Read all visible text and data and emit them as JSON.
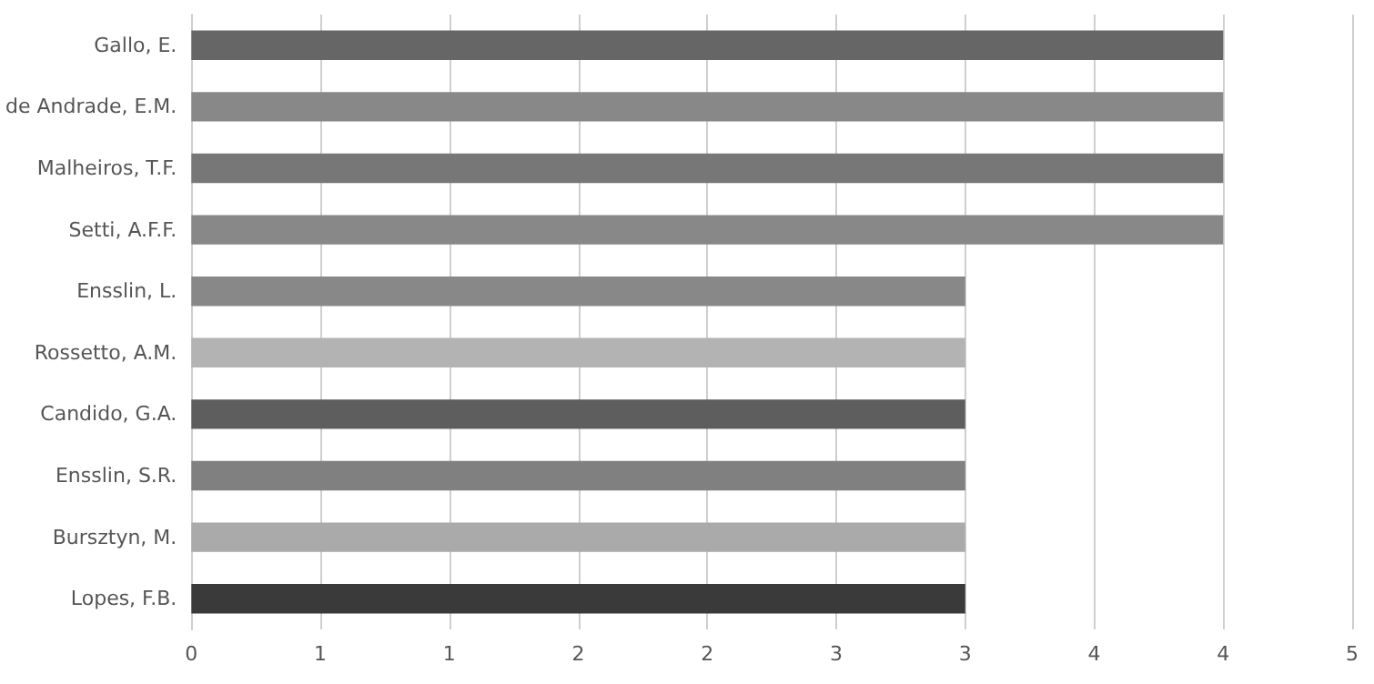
{
  "chart_data": {
    "type": "bar",
    "orientation": "horizontal",
    "categories": [
      "Gallo, E.",
      "de Andrade, E.M.",
      "Malheiros, T.F.",
      "Setti, A.F.F.",
      "Ensslin, L.",
      "Rossetto, A.M.",
      "Candido, G.A.",
      "Ensslin, S.R.",
      "Bursztyn, M.",
      "Lopes, F.B."
    ],
    "values": [
      4,
      4,
      4,
      4,
      3,
      3,
      3,
      3,
      3,
      3
    ],
    "colors": [
      "#666666",
      "#888888",
      "#777777",
      "#888888",
      "#888888",
      "#b3b3b3",
      "#5e5e5e",
      "#808080",
      "#aaaaaa",
      "#3a3a3a"
    ],
    "xlim": [
      0,
      4.5
    ],
    "xticks": [
      0,
      {
        "value": 0.5,
        "label": "1"
      },
      1,
      {
        "value": 1.5,
        "label": "2"
      },
      2,
      {
        "value": 2.5,
        "label": "3"
      },
      3,
      {
        "value": 3.5,
        "label": "4"
      },
      4,
      {
        "value": 4.5,
        "label": "5"
      }
    ],
    "grid": "x"
  }
}
